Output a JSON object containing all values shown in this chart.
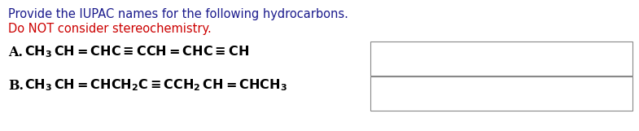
{
  "title_line": "Provide the IUPAC names for the following hydrocarbons.",
  "subtitle_line": "Do NOT consider stereochemistry.",
  "title_color": "#1a1a8c",
  "subtitle_color": "#cc0000",
  "label_A": "A.",
  "label_B": "B.",
  "formula_color": "#000000",
  "label_color": "#000000",
  "background_color": "#ffffff",
  "box_edge_color": "#888888",
  "font_size_title": 10.5,
  "font_size_subtitle": 10.5,
  "font_size_formula": 11.5,
  "font_size_label": 11.5
}
